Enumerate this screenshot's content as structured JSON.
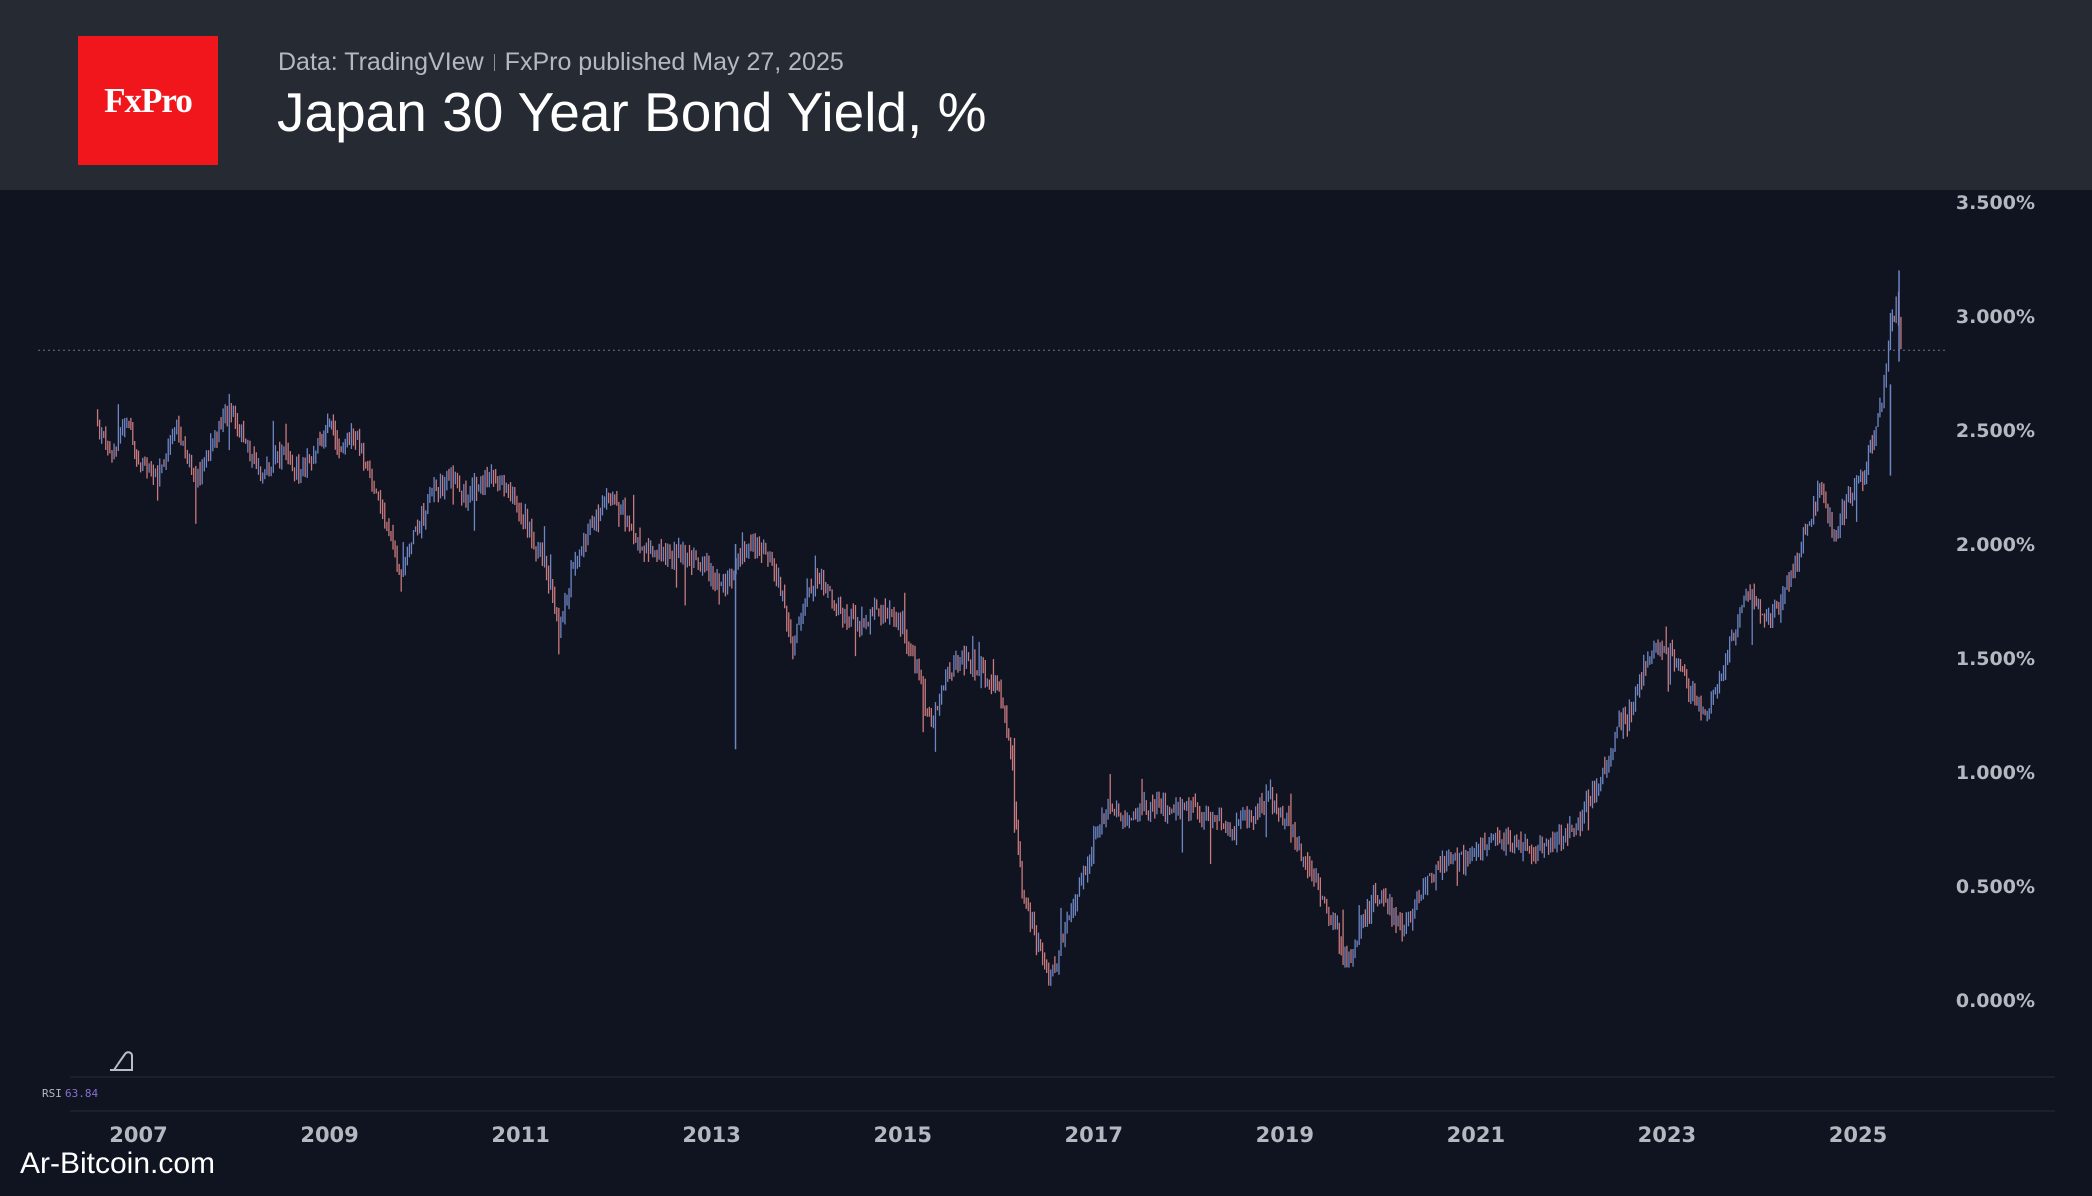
{
  "header": {
    "logo_text": "FxPro",
    "data_source": "Data: TradingVIew",
    "published": "FxPro published May 27, 2025",
    "title": "Japan 30 Year Bond Yield, %"
  },
  "indicator": {
    "label": "RSI",
    "value": "63.84"
  },
  "watermark": "Ar-Bitcoin.com",
  "colors": {
    "background": "#0f1420",
    "header_bg": "#262a33",
    "logo_bg": "#f0161c",
    "candle_up": "#6f86c4",
    "candle_down": "#c97a7e",
    "axis_text": "#b4b8c0",
    "rsi_value": "#8a6fd0"
  },
  "chart_data": {
    "type": "candlestick",
    "title": "Japan 30 Year Bond Yield, %",
    "y_ticks": [
      {
        "value": 3.5,
        "label": "3.500%"
      },
      {
        "value": 3.0,
        "label": "3.000%"
      },
      {
        "value": 2.5,
        "label": "2.500%"
      },
      {
        "value": 2.0,
        "label": "2.000%"
      },
      {
        "value": 1.5,
        "label": "1.500%"
      },
      {
        "value": 1.0,
        "label": "1.000%"
      },
      {
        "value": 0.5,
        "label": "0.500%"
      },
      {
        "value": 0.0,
        "label": "0.000%"
      }
    ],
    "x_ticks": [
      {
        "value": 2007,
        "label": "2007"
      },
      {
        "value": 2009,
        "label": "2009"
      },
      {
        "value": 2011,
        "label": "2011"
      },
      {
        "value": 2013,
        "label": "2013"
      },
      {
        "value": 2015,
        "label": "2015"
      },
      {
        "value": 2017,
        "label": "2017"
      },
      {
        "value": 2019,
        "label": "2019"
      },
      {
        "value": 2021,
        "label": "2021"
      },
      {
        "value": 2023,
        "label": "2023"
      },
      {
        "value": 2025,
        "label": "2025"
      }
    ],
    "xlim": [
      2005.55,
      2027.45
    ],
    "ylim": [
      -0.32,
      3.55
    ],
    "price_line": 2.85,
    "series": [
      {
        "x": 2006.55,
        "y": 2.55
      },
      {
        "x": 2006.7,
        "y": 2.4
      },
      {
        "x": 2006.9,
        "y": 2.55
      },
      {
        "x": 2007.0,
        "y": 2.35
      },
      {
        "x": 2007.2,
        "y": 2.3
      },
      {
        "x": 2007.4,
        "y": 2.5
      },
      {
        "x": 2007.6,
        "y": 2.3
      },
      {
        "x": 2007.8,
        "y": 2.45
      },
      {
        "x": 2007.95,
        "y": 2.6
      },
      {
        "x": 2008.1,
        "y": 2.45
      },
      {
        "x": 2008.3,
        "y": 2.3
      },
      {
        "x": 2008.5,
        "y": 2.4
      },
      {
        "x": 2008.7,
        "y": 2.3
      },
      {
        "x": 2008.9,
        "y": 2.45
      },
      {
        "x": 2009.0,
        "y": 2.55
      },
      {
        "x": 2009.1,
        "y": 2.4
      },
      {
        "x": 2009.25,
        "y": 2.5
      },
      {
        "x": 2009.4,
        "y": 2.35
      },
      {
        "x": 2009.6,
        "y": 2.1
      },
      {
        "x": 2009.75,
        "y": 1.85
      },
      {
        "x": 2009.9,
        "y": 2.05
      },
      {
        "x": 2010.05,
        "y": 2.2
      },
      {
        "x": 2010.25,
        "y": 2.3
      },
      {
        "x": 2010.45,
        "y": 2.2
      },
      {
        "x": 2010.65,
        "y": 2.3
      },
      {
        "x": 2010.85,
        "y": 2.25
      },
      {
        "x": 2011.05,
        "y": 2.1
      },
      {
        "x": 2011.25,
        "y": 1.9
      },
      {
        "x": 2011.4,
        "y": 1.65
      },
      {
        "x": 2011.55,
        "y": 1.9
      },
      {
        "x": 2011.75,
        "y": 2.1
      },
      {
        "x": 2011.9,
        "y": 2.2
      },
      {
        "x": 2012.05,
        "y": 2.15
      },
      {
        "x": 2012.25,
        "y": 2.0
      },
      {
        "x": 2012.45,
        "y": 1.95
      },
      {
        "x": 2012.7,
        "y": 1.95
      },
      {
        "x": 2012.95,
        "y": 1.9
      },
      {
        "x": 2013.1,
        "y": 1.8
      },
      {
        "x": 2013.3,
        "y": 1.95
      },
      {
        "x": 2013.5,
        "y": 2.0
      },
      {
        "x": 2013.7,
        "y": 1.85
      },
      {
        "x": 2013.85,
        "y": 1.55
      },
      {
        "x": 2014.0,
        "y": 1.8
      },
      {
        "x": 2014.15,
        "y": 1.85
      },
      {
        "x": 2014.35,
        "y": 1.7
      },
      {
        "x": 2014.55,
        "y": 1.65
      },
      {
        "x": 2014.75,
        "y": 1.7
      },
      {
        "x": 2015.0,
        "y": 1.65
      },
      {
        "x": 2015.15,
        "y": 1.45
      },
      {
        "x": 2015.3,
        "y": 1.2
      },
      {
        "x": 2015.45,
        "y": 1.4
      },
      {
        "x": 2015.6,
        "y": 1.5
      },
      {
        "x": 2015.8,
        "y": 1.45
      },
      {
        "x": 2015.95,
        "y": 1.4
      },
      {
        "x": 2016.05,
        "y": 1.3
      },
      {
        "x": 2016.15,
        "y": 1.0
      },
      {
        "x": 2016.25,
        "y": 0.5
      },
      {
        "x": 2016.4,
        "y": 0.25
      },
      {
        "x": 2016.55,
        "y": 0.1
      },
      {
        "x": 2016.7,
        "y": 0.3
      },
      {
        "x": 2016.85,
        "y": 0.5
      },
      {
        "x": 2017.0,
        "y": 0.7
      },
      {
        "x": 2017.15,
        "y": 0.85
      },
      {
        "x": 2017.35,
        "y": 0.8
      },
      {
        "x": 2017.55,
        "y": 0.85
      },
      {
        "x": 2017.75,
        "y": 0.85
      },
      {
        "x": 2017.95,
        "y": 0.85
      },
      {
        "x": 2018.2,
        "y": 0.8
      },
      {
        "x": 2018.45,
        "y": 0.75
      },
      {
        "x": 2018.65,
        "y": 0.8
      },
      {
        "x": 2018.85,
        "y": 0.9
      },
      {
        "x": 2019.0,
        "y": 0.8
      },
      {
        "x": 2019.15,
        "y": 0.65
      },
      {
        "x": 2019.35,
        "y": 0.5
      },
      {
        "x": 2019.55,
        "y": 0.3
      },
      {
        "x": 2019.65,
        "y": 0.15
      },
      {
        "x": 2019.8,
        "y": 0.35
      },
      {
        "x": 2019.95,
        "y": 0.45
      },
      {
        "x": 2020.1,
        "y": 0.4
      },
      {
        "x": 2020.25,
        "y": 0.3
      },
      {
        "x": 2020.45,
        "y": 0.5
      },
      {
        "x": 2020.65,
        "y": 0.6
      },
      {
        "x": 2020.85,
        "y": 0.62
      },
      {
        "x": 2021.05,
        "y": 0.65
      },
      {
        "x": 2021.25,
        "y": 0.7
      },
      {
        "x": 2021.45,
        "y": 0.68
      },
      {
        "x": 2021.65,
        "y": 0.66
      },
      {
        "x": 2021.85,
        "y": 0.7
      },
      {
        "x": 2022.05,
        "y": 0.75
      },
      {
        "x": 2022.2,
        "y": 0.9
      },
      {
        "x": 2022.35,
        "y": 1.0
      },
      {
        "x": 2022.5,
        "y": 1.2
      },
      {
        "x": 2022.65,
        "y": 1.3
      },
      {
        "x": 2022.8,
        "y": 1.5
      },
      {
        "x": 2022.95,
        "y": 1.55
      },
      {
        "x": 2023.1,
        "y": 1.5
      },
      {
        "x": 2023.25,
        "y": 1.35
      },
      {
        "x": 2023.4,
        "y": 1.25
      },
      {
        "x": 2023.55,
        "y": 1.4
      },
      {
        "x": 2023.7,
        "y": 1.6
      },
      {
        "x": 2023.85,
        "y": 1.8
      },
      {
        "x": 2024.0,
        "y": 1.7
      },
      {
        "x": 2024.15,
        "y": 1.7
      },
      {
        "x": 2024.3,
        "y": 1.85
      },
      {
        "x": 2024.45,
        "y": 2.05
      },
      {
        "x": 2024.6,
        "y": 2.25
      },
      {
        "x": 2024.75,
        "y": 2.05
      },
      {
        "x": 2024.9,
        "y": 2.2
      },
      {
        "x": 2025.05,
        "y": 2.3
      },
      {
        "x": 2025.15,
        "y": 2.45
      },
      {
        "x": 2025.25,
        "y": 2.6
      },
      {
        "x": 2025.32,
        "y": 2.9
      },
      {
        "x": 2025.4,
        "y": 3.05
      },
      {
        "x": 2025.45,
        "y": 2.85
      }
    ]
  }
}
